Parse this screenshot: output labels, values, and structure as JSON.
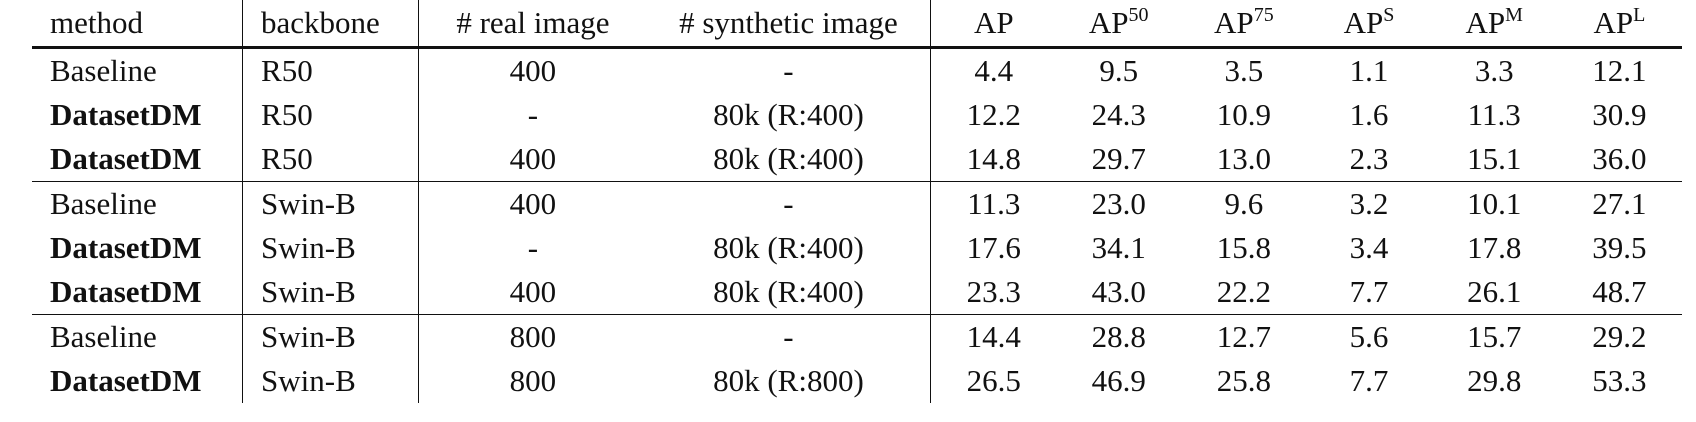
{
  "header": {
    "method": "method",
    "backbone": "backbone",
    "real_image": "# real image",
    "synthetic_image": "# synthetic image",
    "ap": "AP",
    "ap50_sup": "50",
    "ap75_sup": "75",
    "aps_sup": "S",
    "apm_sup": "M",
    "apl_sup": "L"
  },
  "rows": [
    {
      "method": "Baseline",
      "bold": false,
      "backbone": "R50",
      "real": "400",
      "synthetic": "-",
      "ap": "4.4",
      "ap50": "9.5",
      "ap75": "3.5",
      "aps": "1.1",
      "apm": "3.3",
      "apl": "12.1"
    },
    {
      "method": "DatasetDM",
      "bold": true,
      "backbone": "R50",
      "real": "-",
      "synthetic": "80k (R:400)",
      "ap": "12.2",
      "ap50": "24.3",
      "ap75": "10.9",
      "aps": "1.6",
      "apm": "11.3",
      "apl": "30.9"
    },
    {
      "method": "DatasetDM",
      "bold": true,
      "backbone": "R50",
      "real": "400",
      "synthetic": "80k (R:400)",
      "ap": "14.8",
      "ap50": "29.7",
      "ap75": "13.0",
      "aps": "2.3",
      "apm": "15.1",
      "apl": "36.0"
    },
    {
      "method": "Baseline",
      "bold": false,
      "backbone": "Swin-B",
      "real": "400",
      "synthetic": "-",
      "ap": "11.3",
      "ap50": "23.0",
      "ap75": "9.6",
      "aps": "3.2",
      "apm": "10.1",
      "apl": "27.1"
    },
    {
      "method": "DatasetDM",
      "bold": true,
      "backbone": "Swin-B",
      "real": "-",
      "synthetic": "80k (R:400)",
      "ap": "17.6",
      "ap50": "34.1",
      "ap75": "15.8",
      "aps": "3.4",
      "apm": "17.8",
      "apl": "39.5"
    },
    {
      "method": "DatasetDM",
      "bold": true,
      "backbone": "Swin-B",
      "real": "400",
      "synthetic": "80k (R:400)",
      "ap": "23.3",
      "ap50": "43.0",
      "ap75": "22.2",
      "aps": "7.7",
      "apm": "26.1",
      "apl": "48.7"
    },
    {
      "method": "Baseline",
      "bold": false,
      "backbone": "Swin-B",
      "real": "800",
      "synthetic": "-",
      "ap": "14.4",
      "ap50": "28.8",
      "ap75": "12.7",
      "aps": "5.6",
      "apm": "15.7",
      "apl": "29.2"
    },
    {
      "method": "DatasetDM",
      "bold": true,
      "backbone": "Swin-B",
      "real": "800",
      "synthetic": "80k (R:800)",
      "ap": "26.5",
      "ap50": "46.9",
      "ap75": "25.8",
      "aps": "7.7",
      "apm": "29.8",
      "apl": "53.3"
    }
  ],
  "group_starts": [
    0,
    3,
    6
  ]
}
